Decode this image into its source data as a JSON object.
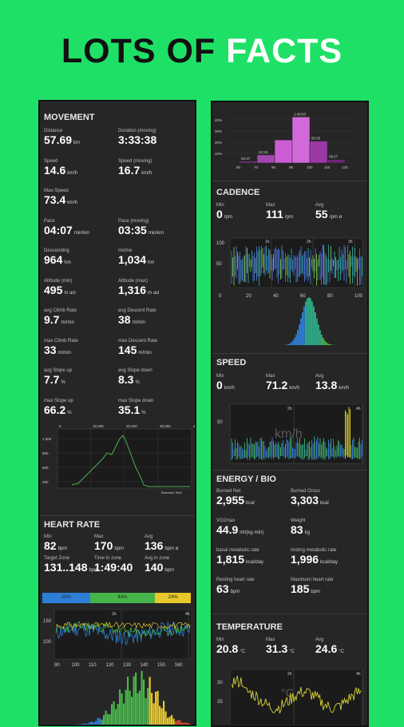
{
  "headline": {
    "part1": "LOTS OF ",
    "part2": "FACTS"
  },
  "movement": {
    "title": "MOVEMENT",
    "stats": [
      {
        "label": "Distance",
        "value": "57.69",
        "unit": "km"
      },
      {
        "label": "Duration (moving)",
        "value": "3:33:38",
        "unit": ""
      },
      {
        "label": "Speed",
        "value": "14.6",
        "unit": "km/h"
      },
      {
        "label": "Speed (moving)",
        "value": "16.7",
        "unit": "km/h"
      },
      {
        "label": "Max-Speed",
        "value": "73.4",
        "unit": "km/h"
      },
      {
        "label": "",
        "value": "",
        "unit": ""
      },
      {
        "label": "Pace",
        "value": "04:07",
        "unit": "min/km"
      },
      {
        "label": "Pace (moving)",
        "value": "03:35",
        "unit": "min/km"
      },
      {
        "label": "Descending",
        "value": "964",
        "unit": "hm"
      },
      {
        "label": "Incline",
        "value": "1,034",
        "unit": "hm"
      },
      {
        "label": "Altitude (min)",
        "value": "495",
        "unit": "m asl"
      },
      {
        "label": "Altitude (max)",
        "value": "1,316",
        "unit": "m asl"
      },
      {
        "label": "avg Climb Rate",
        "value": "9.7",
        "unit": "m/min"
      },
      {
        "label": "avg Descent Rate",
        "value": "38",
        "unit": "m/min"
      },
      {
        "label": "max Climb Rate",
        "value": "33",
        "unit": "m/min"
      },
      {
        "label": "max Descent Rate",
        "value": "145",
        "unit": "m/min"
      },
      {
        "label": "avg Slope up",
        "value": "7.7",
        "unit": "%"
      },
      {
        "label": "avg Slope down",
        "value": "8.3",
        "unit": "%"
      },
      {
        "label": "max Slope up",
        "value": "66.2",
        "unit": "%"
      },
      {
        "label": "max Slope down",
        "value": "35.1",
        "unit": "%"
      }
    ],
    "elevation_chart": {
      "x_ticks": [
        "0",
        "10,000",
        "20,000",
        "30,000",
        "40,000"
      ],
      "y_ticks": [
        "1,000",
        "800",
        "600",
        "400"
      ],
      "corner_label": "Brandner Steil",
      "line_color": "#4caf50"
    }
  },
  "heart_rate": {
    "title": "HEART RATE",
    "stats": [
      {
        "label": "Min",
        "value": "82",
        "unit": "bpm"
      },
      {
        "label": "Max",
        "value": "170",
        "unit": "bpm"
      },
      {
        "label": "Avg",
        "value": "136",
        "unit": "bpm ø"
      },
      {
        "label": "Target Zone",
        "value": "131..148",
        "unit": "bpm"
      },
      {
        "label": "Time in zone",
        "value": "1:49:40",
        "unit": ""
      },
      {
        "label": "Avg in zone",
        "value": "140",
        "unit": "bpm"
      }
    ],
    "zones": [
      {
        "label": "32%",
        "color": "#2d7fd6"
      },
      {
        "label": "44%",
        "color": "#46b54a"
      },
      {
        "label": "24%",
        "color": "#e8c82a"
      }
    ],
    "zone_pcts": [
      32,
      44,
      24
    ],
    "series_labels": [
      "2h",
      "4h"
    ],
    "y_ticks": [
      "150",
      "100"
    ],
    "x_ticks": [
      "90",
      "100",
      "110",
      "120",
      "130",
      "140",
      "150",
      "160"
    ]
  },
  "distribution": {
    "x_labels": [
      "60",
      "70",
      "80",
      "90",
      "100",
      "110",
      "120"
    ],
    "values": [
      "02:37",
      "21:53",
      "",
      "1:49:03",
      "56:55",
      "09:27"
    ],
    "heights": [
      3,
      14,
      40,
      80,
      38,
      6
    ],
    "colors": [
      "#7b2e86",
      "#a347b0",
      "#cc5cd6",
      "#d16ad8",
      "#9b3aa6",
      "#6e2576"
    ],
    "y_ticks": [
      "40%",
      "30%",
      "20%",
      "10%"
    ]
  },
  "cadence": {
    "title": "CADENCE",
    "stats": [
      {
        "label": "Min",
        "value": "0",
        "unit": "rpm"
      },
      {
        "label": "Max",
        "value": "111",
        "unit": "rpm"
      },
      {
        "label": "Avg",
        "value": "55",
        "unit": "rpm ø"
      }
    ],
    "series_labels": [
      "1h",
      "2h",
      "3h"
    ],
    "y_ticks": [
      "100",
      "50"
    ],
    "x_ticks": [
      "0",
      "20",
      "40",
      "60",
      "80",
      "100"
    ]
  },
  "speed": {
    "title": "SPEED",
    "stats": [
      {
        "label": "Min",
        "value": "0",
        "unit": "km/h"
      },
      {
        "label": "Max",
        "value": "71.2",
        "unit": "km/h"
      },
      {
        "label": "Avg",
        "value": "13.8",
        "unit": "km/h"
      }
    ],
    "series_labels": [
      "2h",
      "4h"
    ],
    "y_ticks": [
      "50"
    ],
    "watermark": "km/h"
  },
  "energy": {
    "title": "ENERGY / BIO",
    "stats": [
      {
        "label": "Burned Net",
        "value": "2,955",
        "unit": "kcal"
      },
      {
        "label": "Burned Gross",
        "value": "3,303",
        "unit": "kcal"
      },
      {
        "label": "VO2max",
        "value": "44.9",
        "unit": "ml/(kg·min)"
      },
      {
        "label": "Weight",
        "value": "83",
        "unit": "kg"
      },
      {
        "label": "basal metabolic rate",
        "value": "1,815",
        "unit": "kcal/day"
      },
      {
        "label": "resting metabolic rate",
        "value": "1,996",
        "unit": "kcal/day"
      },
      {
        "label": "Resting heart rate",
        "value": "63",
        "unit": "bpm"
      },
      {
        "label": "Maximum heart rate",
        "value": "185",
        "unit": "bpm"
      }
    ]
  },
  "temperature": {
    "title": "TEMPERATURE",
    "stats": [
      {
        "label": "Min",
        "value": "20.8",
        "unit": "°C"
      },
      {
        "label": "Max",
        "value": "31.3",
        "unit": "°C"
      },
      {
        "label": "Avg",
        "value": "24.6",
        "unit": "°C"
      }
    ],
    "series_labels": [
      "2h",
      "4h"
    ],
    "y_ticks": [
      "30",
      "25"
    ],
    "watermark": "°C"
  }
}
